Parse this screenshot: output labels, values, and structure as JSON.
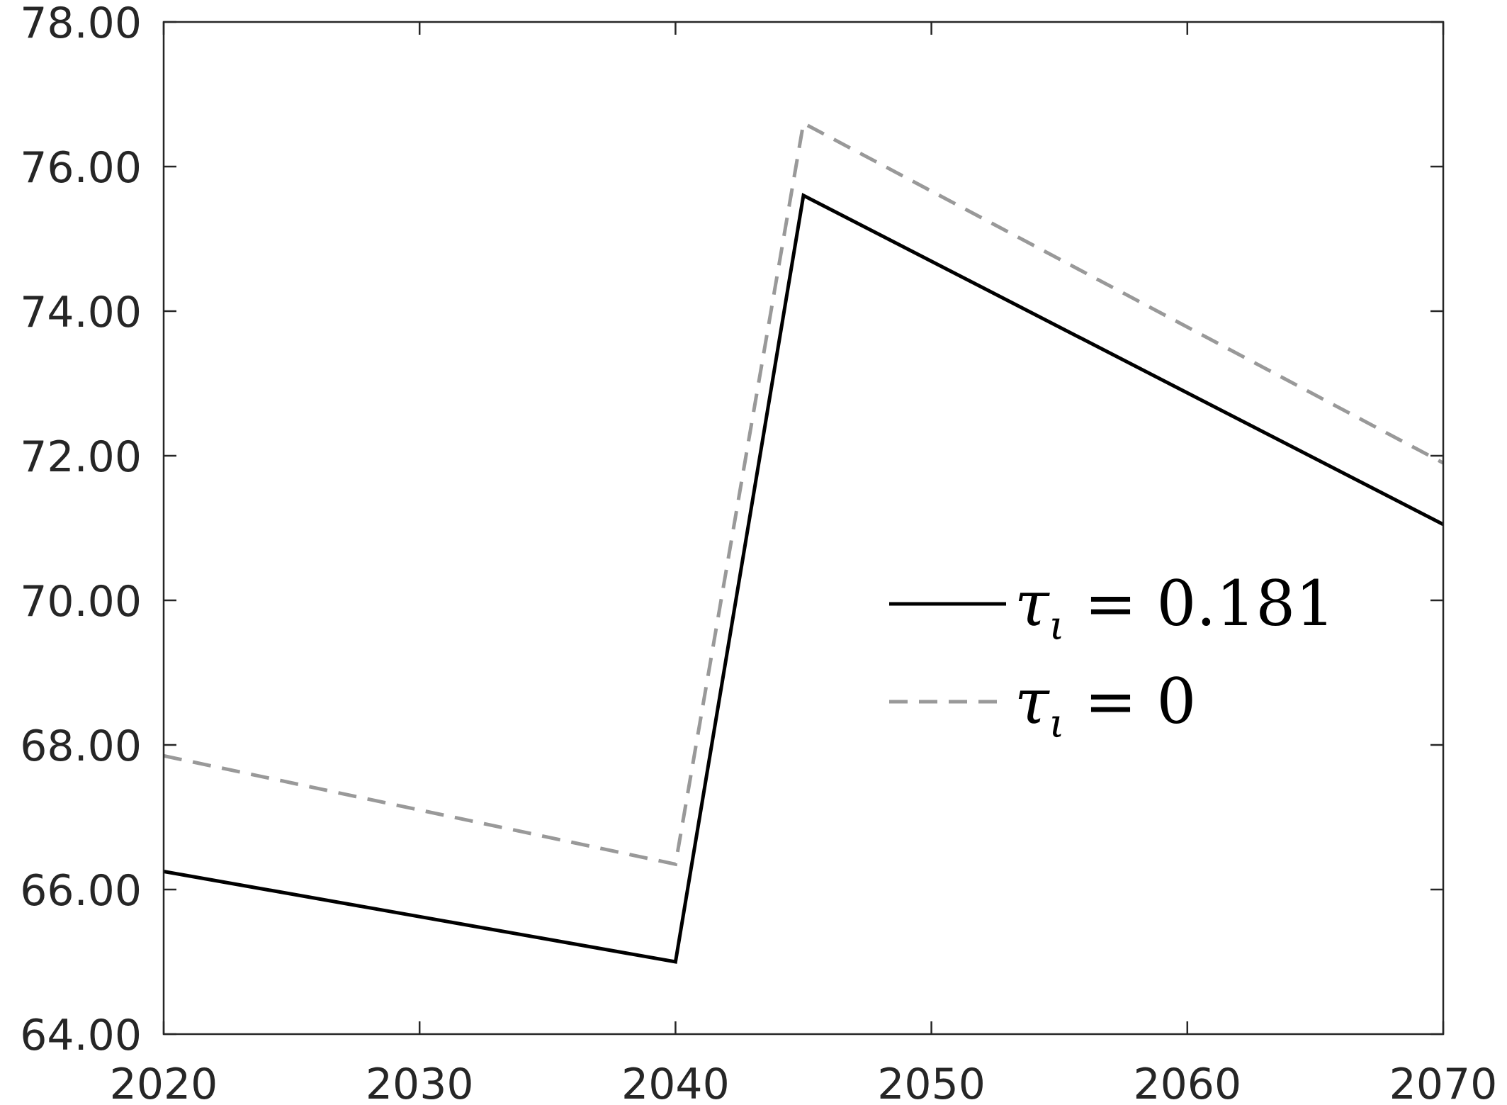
{
  "chart_data": {
    "type": "line",
    "title": "",
    "xlabel": "",
    "ylabel": "",
    "xlim": [
      2020,
      2070
    ],
    "ylim": [
      64,
      78
    ],
    "xticks": [
      2020,
      2030,
      2040,
      2050,
      2060,
      2070
    ],
    "yticks": [
      64,
      66,
      68,
      70,
      72,
      74,
      76,
      78
    ],
    "xtick_labels": [
      "2020",
      "2030",
      "2040",
      "2050",
      "2060",
      "2070"
    ],
    "ytick_labels": [
      "64.00",
      "66.00",
      "68.00",
      "70.00",
      "72.00",
      "74.00",
      "76.00",
      "78.00"
    ],
    "grid": false,
    "legend_position": "right",
    "series": [
      {
        "name_symbol": "τ",
        "name_subscript": "ι",
        "name_value": " = 0.181",
        "style": "solid",
        "color": "#000000",
        "x": [
          2020,
          2040,
          2045,
          2070
        ],
        "y": [
          66.25,
          65.0,
          75.6,
          71.05
        ]
      },
      {
        "name_symbol": "τ",
        "name_subscript": "ι",
        "name_value": " = 0",
        "style": "dashed",
        "color": "#999999",
        "x": [
          2020,
          2040,
          2045,
          2070
        ],
        "y": [
          67.85,
          66.35,
          76.6,
          71.9
        ]
      }
    ]
  }
}
